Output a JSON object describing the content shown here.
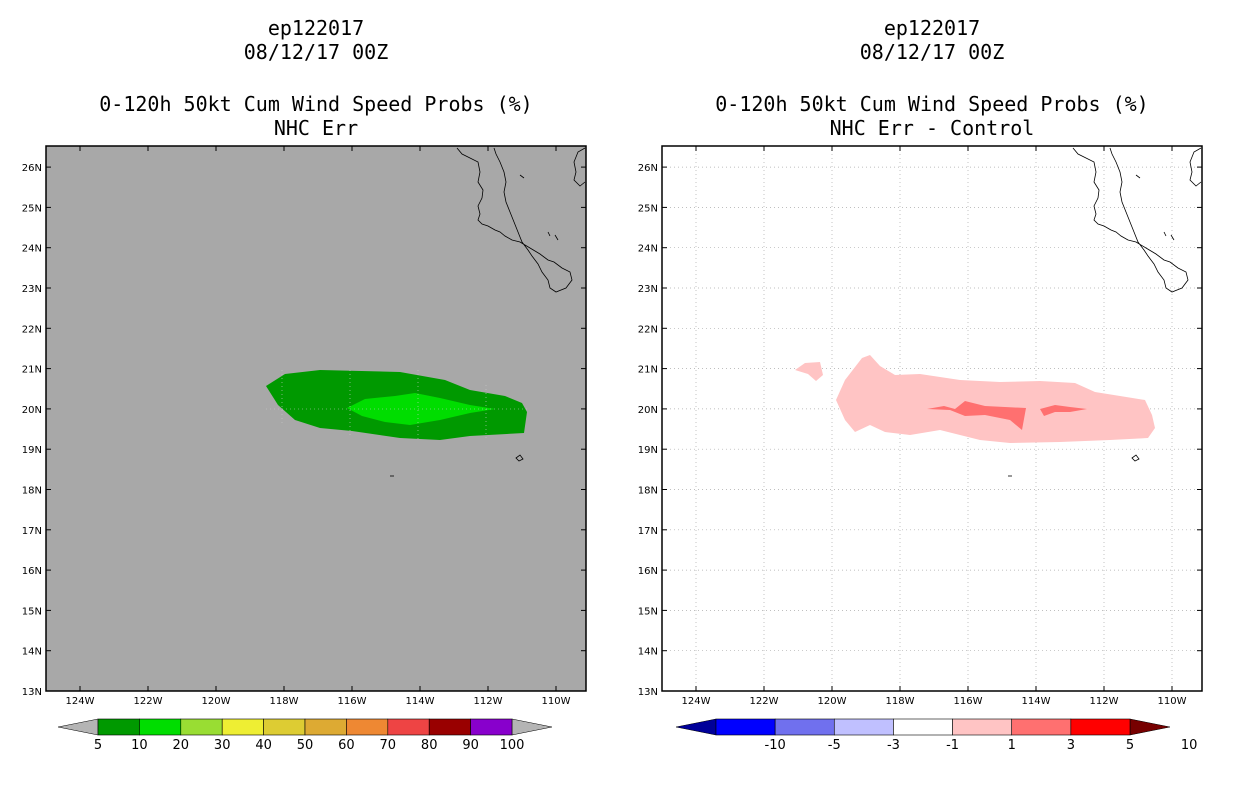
{
  "left": {
    "storm": "ep122017",
    "date": "08/12/17 00Z",
    "product": "0-120h 50kt Cum Wind Speed Probs (%)",
    "subtitle": "NHC Err",
    "background": "#a8a8a8"
  },
  "right": {
    "storm": "ep122017",
    "date": "08/12/17 00Z",
    "product": "0-120h 50kt Cum Wind Speed Probs (%)",
    "subtitle": "NHC Err - Control",
    "background": "#ffffff"
  },
  "axes": {
    "lat_labels": [
      "13N",
      "14N",
      "15N",
      "16N",
      "17N",
      "18N",
      "19N",
      "20N",
      "21N",
      "22N",
      "23N",
      "24N",
      "25N",
      "26N"
    ],
    "lon_labels": [
      "124W",
      "122W",
      "120W",
      "118W",
      "116W",
      "114W",
      "112W",
      "110W"
    ]
  },
  "left_colorbar": {
    "labels": [
      "5",
      "10",
      "20",
      "30",
      "40",
      "50",
      "60",
      "70",
      "80",
      "90",
      "100"
    ],
    "colors": [
      "#009900",
      "#00dd00",
      "#99dd33",
      "#eeee33",
      "#ddcc33",
      "#ddaa33",
      "#ee8833",
      "#ee4444",
      "#990000",
      "#8800cc"
    ],
    "under_color": "#b4b4b4",
    "over_color": "#b4b4b4"
  },
  "right_colorbar": {
    "labels": [
      "-10",
      "-5",
      "-3",
      "-1",
      "1",
      "3",
      "5",
      "10"
    ],
    "colors": [
      "#0000ff",
      "#7070ee",
      "#c0c0ff",
      "#ffffff",
      "#ffc4c4",
      "#ff7070",
      "#ff0000"
    ],
    "under_color": "#000099",
    "over_color": "#770000"
  },
  "left_field": {
    "outer_color": "#009900",
    "inner_color": "#00dd00"
  },
  "right_field": {
    "outer_color": "#ffc4c4",
    "inner_color": "#ff7070"
  }
}
